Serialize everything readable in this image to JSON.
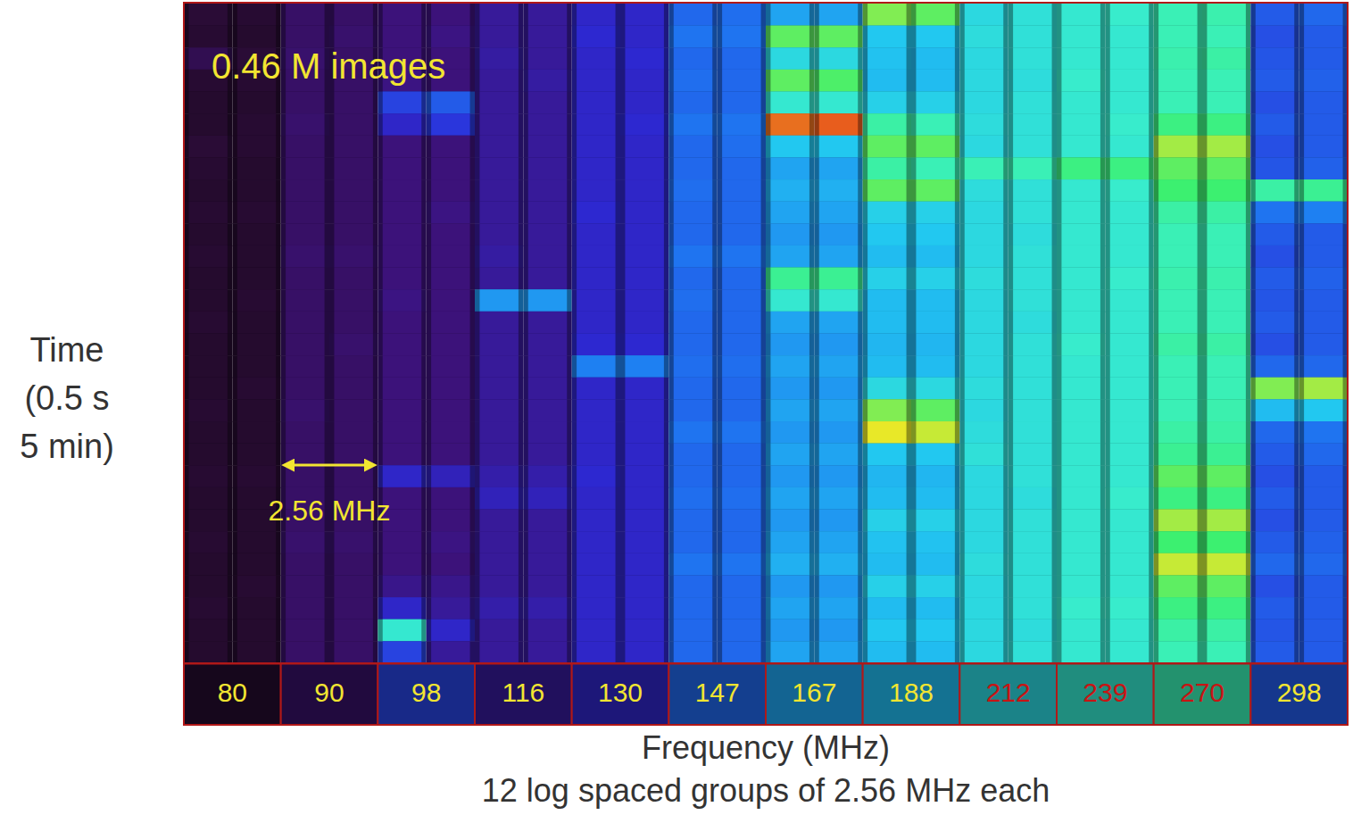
{
  "chart_data": {
    "type": "heatmap",
    "xlabel": "Frequency (MHz)",
    "subtitle": "12 log spaced groups of 2.56 MHz each",
    "ylabel": [
      "Time",
      "(0.5 s",
      "5 min)"
    ],
    "annotations": [
      {
        "text": "0.46 M images"
      },
      {
        "text": "2.56 MHz"
      }
    ],
    "categories": [
      "80",
      "90",
      "98",
      "116",
      "130",
      "147",
      "167",
      "188",
      "212",
      "239",
      "270",
      "298"
    ],
    "tick_labels": "x",
    "grid": false,
    "zlim": [
      0,
      1
    ],
    "cells": [
      [
        [
          0.1,
          0.09
        ],
        [
          0.17,
          0.17
        ],
        [
          0.2,
          0.2
        ],
        [
          0.24,
          0.24
        ],
        [
          0.3,
          0.3
        ],
        [
          0.42,
          0.43
        ],
        [
          0.52,
          0.52
        ],
        [
          0.82,
          0.8
        ],
        [
          0.62,
          0.64
        ],
        [
          0.66,
          0.67
        ],
        [
          0.7,
          0.71
        ],
        [
          0.4,
          0.42
        ]
      ],
      [
        [
          0.09,
          0.08
        ],
        [
          0.17,
          0.18
        ],
        [
          0.2,
          0.21
        ],
        [
          0.24,
          0.24
        ],
        [
          0.31,
          0.3
        ],
        [
          0.44,
          0.44
        ],
        [
          0.8,
          0.8
        ],
        [
          0.58,
          0.58
        ],
        [
          0.63,
          0.64
        ],
        [
          0.66,
          0.66
        ],
        [
          0.7,
          0.7
        ],
        [
          0.38,
          0.4
        ]
      ],
      [
        [
          0.14,
          0.1
        ],
        [
          0.18,
          0.17
        ],
        [
          0.2,
          0.2
        ],
        [
          0.25,
          0.24
        ],
        [
          0.3,
          0.31
        ],
        [
          0.42,
          0.42
        ],
        [
          0.62,
          0.62
        ],
        [
          0.57,
          0.56
        ],
        [
          0.62,
          0.64
        ],
        [
          0.66,
          0.66
        ],
        [
          0.71,
          0.72
        ],
        [
          0.39,
          0.4
        ]
      ],
      [
        [
          0.09,
          0.09
        ],
        [
          0.17,
          0.17
        ],
        [
          0.21,
          0.2
        ],
        [
          0.24,
          0.25
        ],
        [
          0.3,
          0.3
        ],
        [
          0.43,
          0.42
        ],
        [
          0.8,
          0.79
        ],
        [
          0.56,
          0.56
        ],
        [
          0.62,
          0.63
        ],
        [
          0.67,
          0.66
        ],
        [
          0.7,
          0.7
        ],
        [
          0.4,
          0.41
        ]
      ],
      [
        [
          0.08,
          0.08
        ],
        [
          0.17,
          0.17
        ],
        [
          0.36,
          0.4
        ],
        [
          0.24,
          0.24
        ],
        [
          0.3,
          0.3
        ],
        [
          0.42,
          0.42
        ],
        [
          0.66,
          0.66
        ],
        [
          0.6,
          0.6
        ],
        [
          0.62,
          0.64
        ],
        [
          0.66,
          0.66
        ],
        [
          0.7,
          0.7
        ],
        [
          0.38,
          0.4
        ]
      ],
      [
        [
          0.08,
          0.09
        ],
        [
          0.18,
          0.17
        ],
        [
          0.3,
          0.34
        ],
        [
          0.24,
          0.24
        ],
        [
          0.3,
          0.31
        ],
        [
          0.44,
          0.44
        ],
        [
          0.95,
          0.96
        ],
        [
          0.72,
          0.7
        ],
        [
          0.63,
          0.64
        ],
        [
          0.66,
          0.67
        ],
        [
          0.76,
          0.76
        ],
        [
          0.4,
          0.4
        ]
      ],
      [
        [
          0.1,
          0.09
        ],
        [
          0.17,
          0.17
        ],
        [
          0.2,
          0.2
        ],
        [
          0.24,
          0.24
        ],
        [
          0.3,
          0.3
        ],
        [
          0.42,
          0.43
        ],
        [
          0.58,
          0.58
        ],
        [
          0.8,
          0.8
        ],
        [
          0.62,
          0.64
        ],
        [
          0.66,
          0.66
        ],
        [
          0.84,
          0.84
        ],
        [
          0.38,
          0.4
        ]
      ],
      [
        [
          0.09,
          0.08
        ],
        [
          0.17,
          0.17
        ],
        [
          0.2,
          0.2
        ],
        [
          0.24,
          0.24
        ],
        [
          0.3,
          0.3
        ],
        [
          0.42,
          0.42
        ],
        [
          0.52,
          0.52
        ],
        [
          0.72,
          0.7
        ],
        [
          0.7,
          0.7
        ],
        [
          0.76,
          0.76
        ],
        [
          0.8,
          0.8
        ],
        [
          0.39,
          0.41
        ]
      ],
      [
        [
          0.08,
          0.08
        ],
        [
          0.17,
          0.17
        ],
        [
          0.2,
          0.2
        ],
        [
          0.24,
          0.24
        ],
        [
          0.3,
          0.3
        ],
        [
          0.43,
          0.42
        ],
        [
          0.54,
          0.54
        ],
        [
          0.8,
          0.8
        ],
        [
          0.63,
          0.64
        ],
        [
          0.66,
          0.67
        ],
        [
          0.78,
          0.78
        ],
        [
          0.72,
          0.74
        ]
      ],
      [
        [
          0.09,
          0.09
        ],
        [
          0.17,
          0.17
        ],
        [
          0.2,
          0.21
        ],
        [
          0.24,
          0.24
        ],
        [
          0.31,
          0.3
        ],
        [
          0.42,
          0.42
        ],
        [
          0.52,
          0.52
        ],
        [
          0.6,
          0.6
        ],
        [
          0.62,
          0.64
        ],
        [
          0.66,
          0.66
        ],
        [
          0.72,
          0.72
        ],
        [
          0.44,
          0.46
        ]
      ],
      [
        [
          0.08,
          0.08
        ],
        [
          0.17,
          0.17
        ],
        [
          0.2,
          0.2
        ],
        [
          0.24,
          0.24
        ],
        [
          0.3,
          0.3
        ],
        [
          0.42,
          0.42
        ],
        [
          0.5,
          0.5
        ],
        [
          0.58,
          0.58
        ],
        [
          0.62,
          0.63
        ],
        [
          0.66,
          0.66
        ],
        [
          0.7,
          0.7
        ],
        [
          0.4,
          0.4
        ]
      ],
      [
        [
          0.09,
          0.08
        ],
        [
          0.18,
          0.18
        ],
        [
          0.2,
          0.2
        ],
        [
          0.25,
          0.24
        ],
        [
          0.3,
          0.3
        ],
        [
          0.44,
          0.44
        ],
        [
          0.52,
          0.52
        ],
        [
          0.56,
          0.56
        ],
        [
          0.62,
          0.64
        ],
        [
          0.66,
          0.66
        ],
        [
          0.7,
          0.7
        ],
        [
          0.38,
          0.4
        ]
      ],
      [
        [
          0.08,
          0.08
        ],
        [
          0.17,
          0.17
        ],
        [
          0.2,
          0.2
        ],
        [
          0.24,
          0.24
        ],
        [
          0.3,
          0.3
        ],
        [
          0.42,
          0.42
        ],
        [
          0.74,
          0.74
        ],
        [
          0.6,
          0.6
        ],
        [
          0.63,
          0.64
        ],
        [
          0.66,
          0.67
        ],
        [
          0.71,
          0.71
        ],
        [
          0.4,
          0.41
        ]
      ],
      [
        [
          0.08,
          0.09
        ],
        [
          0.17,
          0.17
        ],
        [
          0.21,
          0.2
        ],
        [
          0.5,
          0.5
        ],
        [
          0.3,
          0.3
        ],
        [
          0.43,
          0.42
        ],
        [
          0.66,
          0.66
        ],
        [
          0.56,
          0.56
        ],
        [
          0.62,
          0.64
        ],
        [
          0.66,
          0.66
        ],
        [
          0.7,
          0.7
        ],
        [
          0.39,
          0.4
        ]
      ],
      [
        [
          0.09,
          0.08
        ],
        [
          0.17,
          0.17
        ],
        [
          0.2,
          0.2
        ],
        [
          0.24,
          0.24
        ],
        [
          0.3,
          0.3
        ],
        [
          0.42,
          0.42
        ],
        [
          0.52,
          0.52
        ],
        [
          0.56,
          0.56
        ],
        [
          0.62,
          0.63
        ],
        [
          0.66,
          0.66
        ],
        [
          0.7,
          0.7
        ],
        [
          0.4,
          0.4
        ]
      ],
      [
        [
          0.08,
          0.08
        ],
        [
          0.17,
          0.18
        ],
        [
          0.2,
          0.2
        ],
        [
          0.24,
          0.24
        ],
        [
          0.31,
          0.31
        ],
        [
          0.42,
          0.42
        ],
        [
          0.5,
          0.5
        ],
        [
          0.55,
          0.55
        ],
        [
          0.62,
          0.64
        ],
        [
          0.67,
          0.66
        ],
        [
          0.72,
          0.72
        ],
        [
          0.38,
          0.4
        ]
      ],
      [
        [
          0.08,
          0.08
        ],
        [
          0.17,
          0.17
        ],
        [
          0.2,
          0.2
        ],
        [
          0.24,
          0.24
        ],
        [
          0.46,
          0.46
        ],
        [
          0.43,
          0.43
        ],
        [
          0.52,
          0.52
        ],
        [
          0.56,
          0.56
        ],
        [
          0.62,
          0.64
        ],
        [
          0.66,
          0.66
        ],
        [
          0.7,
          0.7
        ],
        [
          0.42,
          0.42
        ]
      ],
      [
        [
          0.08,
          0.09
        ],
        [
          0.17,
          0.17
        ],
        [
          0.2,
          0.2
        ],
        [
          0.24,
          0.24
        ],
        [
          0.3,
          0.3
        ],
        [
          0.42,
          0.42
        ],
        [
          0.5,
          0.5
        ],
        [
          0.62,
          0.62
        ],
        [
          0.63,
          0.64
        ],
        [
          0.66,
          0.66
        ],
        [
          0.7,
          0.7
        ],
        [
          0.82,
          0.84
        ]
      ],
      [
        [
          0.09,
          0.08
        ],
        [
          0.18,
          0.17
        ],
        [
          0.2,
          0.2
        ],
        [
          0.24,
          0.24
        ],
        [
          0.3,
          0.3
        ],
        [
          0.42,
          0.42
        ],
        [
          0.52,
          0.52
        ],
        [
          0.82,
          0.8
        ],
        [
          0.62,
          0.64
        ],
        [
          0.66,
          0.66
        ],
        [
          0.7,
          0.71
        ],
        [
          0.56,
          0.58
        ]
      ],
      [
        [
          0.08,
          0.08
        ],
        [
          0.17,
          0.17
        ],
        [
          0.2,
          0.2
        ],
        [
          0.24,
          0.24
        ],
        [
          0.3,
          0.3
        ],
        [
          0.44,
          0.44
        ],
        [
          0.5,
          0.5
        ],
        [
          0.88,
          0.86
        ],
        [
          0.63,
          0.64
        ],
        [
          0.66,
          0.66
        ],
        [
          0.72,
          0.72
        ],
        [
          0.42,
          0.44
        ]
      ],
      [
        [
          0.08,
          0.08
        ],
        [
          0.17,
          0.17
        ],
        [
          0.2,
          0.2
        ],
        [
          0.24,
          0.24
        ],
        [
          0.3,
          0.3
        ],
        [
          0.42,
          0.42
        ],
        [
          0.52,
          0.52
        ],
        [
          0.58,
          0.58
        ],
        [
          0.64,
          0.64
        ],
        [
          0.66,
          0.66
        ],
        [
          0.74,
          0.74
        ],
        [
          0.4,
          0.42
        ]
      ],
      [
        [
          0.09,
          0.09
        ],
        [
          0.17,
          0.17
        ],
        [
          0.3,
          0.28
        ],
        [
          0.26,
          0.26
        ],
        [
          0.31,
          0.3
        ],
        [
          0.42,
          0.42
        ],
        [
          0.5,
          0.5
        ],
        [
          0.55,
          0.55
        ],
        [
          0.62,
          0.64
        ],
        [
          0.66,
          0.66
        ],
        [
          0.8,
          0.8
        ],
        [
          0.38,
          0.4
        ]
      ],
      [
        [
          0.08,
          0.08
        ],
        [
          0.17,
          0.17
        ],
        [
          0.2,
          0.2
        ],
        [
          0.28,
          0.28
        ],
        [
          0.3,
          0.3
        ],
        [
          0.43,
          0.43
        ],
        [
          0.52,
          0.52
        ],
        [
          0.56,
          0.56
        ],
        [
          0.62,
          0.63
        ],
        [
          0.66,
          0.67
        ],
        [
          0.76,
          0.76
        ],
        [
          0.4,
          0.4
        ]
      ],
      [
        [
          0.08,
          0.08
        ],
        [
          0.17,
          0.17
        ],
        [
          0.2,
          0.2
        ],
        [
          0.24,
          0.24
        ],
        [
          0.3,
          0.3
        ],
        [
          0.42,
          0.42
        ],
        [
          0.5,
          0.5
        ],
        [
          0.6,
          0.6
        ],
        [
          0.62,
          0.64
        ],
        [
          0.66,
          0.66
        ],
        [
          0.84,
          0.84
        ],
        [
          0.38,
          0.4
        ]
      ],
      [
        [
          0.09,
          0.08
        ],
        [
          0.18,
          0.18
        ],
        [
          0.2,
          0.21
        ],
        [
          0.24,
          0.24
        ],
        [
          0.3,
          0.3
        ],
        [
          0.42,
          0.42
        ],
        [
          0.52,
          0.52
        ],
        [
          0.57,
          0.57
        ],
        [
          0.62,
          0.64
        ],
        [
          0.66,
          0.66
        ],
        [
          0.78,
          0.78
        ],
        [
          0.4,
          0.41
        ]
      ],
      [
        [
          0.08,
          0.08
        ],
        [
          0.17,
          0.17
        ],
        [
          0.2,
          0.2
        ],
        [
          0.24,
          0.24
        ],
        [
          0.3,
          0.3
        ],
        [
          0.44,
          0.44
        ],
        [
          0.54,
          0.54
        ],
        [
          0.56,
          0.56
        ],
        [
          0.63,
          0.64
        ],
        [
          0.66,
          0.66
        ],
        [
          0.86,
          0.86
        ],
        [
          0.42,
          0.42
        ]
      ],
      [
        [
          0.08,
          0.09
        ],
        [
          0.17,
          0.17
        ],
        [
          0.22,
          0.22
        ],
        [
          0.24,
          0.24
        ],
        [
          0.3,
          0.3
        ],
        [
          0.42,
          0.42
        ],
        [
          0.5,
          0.5
        ],
        [
          0.6,
          0.6
        ],
        [
          0.62,
          0.64
        ],
        [
          0.66,
          0.66
        ],
        [
          0.8,
          0.8
        ],
        [
          0.38,
          0.4
        ]
      ],
      [
        [
          0.09,
          0.08
        ],
        [
          0.17,
          0.17
        ],
        [
          0.3,
          0.24
        ],
        [
          0.26,
          0.26
        ],
        [
          0.3,
          0.3
        ],
        [
          0.42,
          0.42
        ],
        [
          0.52,
          0.52
        ],
        [
          0.56,
          0.56
        ],
        [
          0.62,
          0.64
        ],
        [
          0.67,
          0.67
        ],
        [
          0.76,
          0.76
        ],
        [
          0.4,
          0.4
        ]
      ],
      [
        [
          0.08,
          0.08
        ],
        [
          0.17,
          0.17
        ],
        [
          0.66,
          0.3
        ],
        [
          0.24,
          0.24
        ],
        [
          0.3,
          0.3
        ],
        [
          0.42,
          0.42
        ],
        [
          0.5,
          0.5
        ],
        [
          0.58,
          0.58
        ],
        [
          0.62,
          0.63
        ],
        [
          0.66,
          0.66
        ],
        [
          0.72,
          0.72
        ],
        [
          0.39,
          0.4
        ]
      ],
      [
        [
          0.08,
          0.08
        ],
        [
          0.17,
          0.17
        ],
        [
          0.36,
          0.24
        ],
        [
          0.24,
          0.24
        ],
        [
          0.3,
          0.3
        ],
        [
          0.42,
          0.42
        ],
        [
          0.52,
          0.52
        ],
        [
          0.56,
          0.56
        ],
        [
          0.62,
          0.64
        ],
        [
          0.66,
          0.66
        ],
        [
          0.7,
          0.7
        ],
        [
          0.4,
          0.4
        ]
      ]
    ]
  }
}
